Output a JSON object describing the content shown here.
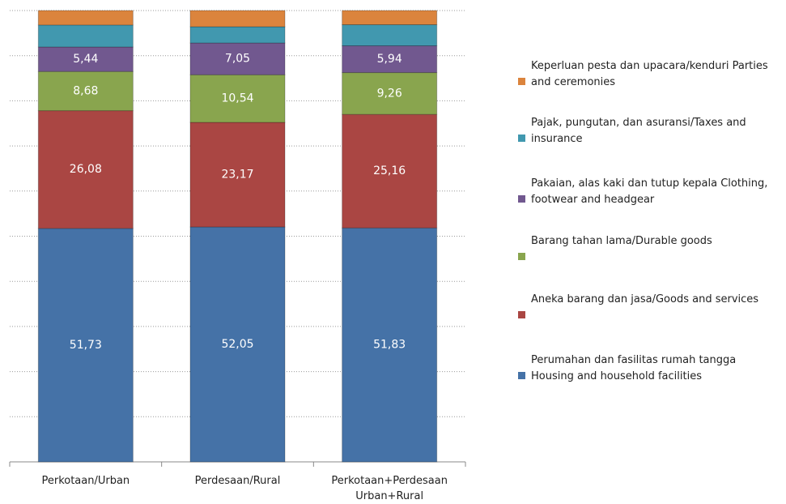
{
  "chart_data": {
    "type": "stacked-bar",
    "categories": [
      "Perkotaan/Urban",
      "Perdesaan/Rural",
      "Perkotaan+Perdesaan Urban+Rural"
    ],
    "ylim": [
      0,
      100
    ],
    "yticks": [
      0,
      10,
      20,
      30,
      40,
      50,
      60,
      70,
      80,
      90,
      100
    ],
    "grid": true,
    "series": [
      {
        "name": "Perumahan dan fasilitas rumah tangga Housing and household facilities",
        "color": "#4572a7",
        "values": [
          51.73,
          52.05,
          51.83
        ],
        "value_labels": [
          "51,73",
          "52,05",
          "51,83"
        ]
      },
      {
        "name": "Aneka barang dan jasa/Goods and services",
        "color": "#aa4643",
        "values": [
          26.08,
          23.17,
          25.16
        ],
        "value_labels": [
          "26,08",
          "23,17",
          "25,16"
        ]
      },
      {
        "name": "Barang tahan lama/Durable goods",
        "color": "#89a54e",
        "values": [
          8.68,
          10.54,
          9.26
        ],
        "value_labels": [
          "8,68",
          "10,54",
          "9,26"
        ]
      },
      {
        "name": "Pakaian, alas kaki dan tutup kepala Clothing, footwear and headgear",
        "color": "#71588f",
        "values": [
          5.44,
          7.05,
          5.94
        ],
        "value_labels": [
          "5,44",
          "7,05",
          "5,94"
        ]
      },
      {
        "name": "Pajak, pungutan, dan asuransi/Taxes and insurance",
        "color": "#4198af",
        "values": [
          4.87,
          3.6,
          4.67
        ]
      },
      {
        "name": "Keperluan pesta dan upacara/kenduri Parties and ceremonies",
        "color": "#db843d",
        "values": [
          3.2,
          3.59,
          3.14
        ]
      }
    ]
  }
}
